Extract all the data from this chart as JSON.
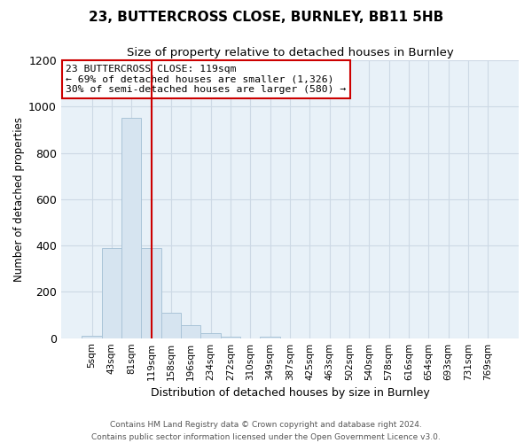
{
  "title": "23, BUTTERCROSS CLOSE, BURNLEY, BB11 5HB",
  "subtitle": "Size of property relative to detached houses in Burnley",
  "xlabel": "Distribution of detached houses by size in Burnley",
  "ylabel": "Number of detached properties",
  "bar_labels": [
    "5sqm",
    "43sqm",
    "81sqm",
    "119sqm",
    "158sqm",
    "196sqm",
    "234sqm",
    "272sqm",
    "310sqm",
    "349sqm",
    "387sqm",
    "425sqm",
    "463sqm",
    "502sqm",
    "540sqm",
    "578sqm",
    "616sqm",
    "654sqm",
    "693sqm",
    "731sqm",
    "769sqm"
  ],
  "bar_values": [
    10,
    390,
    950,
    390,
    110,
    55,
    22,
    5,
    0,
    5,
    0,
    0,
    0,
    0,
    0,
    0,
    0,
    0,
    0,
    0,
    0
  ],
  "bar_color": "#d6e4f0",
  "bar_edgecolor": "#aac4d8",
  "vline_x": 3,
  "vline_color": "#cc0000",
  "ylim": [
    0,
    1200
  ],
  "yticks": [
    0,
    200,
    400,
    600,
    800,
    1000,
    1200
  ],
  "annotation_title": "23 BUTTERCROSS CLOSE: 119sqm",
  "annotation_line1": "← 69% of detached houses are smaller (1,326)",
  "annotation_line2": "30% of semi-detached houses are larger (580) →",
  "annotation_box_color": "#ffffff",
  "annotation_box_edgecolor": "#cc0000",
  "footer1": "Contains HM Land Registry data © Crown copyright and database right 2024.",
  "footer2": "Contains public sector information licensed under the Open Government Licence v3.0.",
  "grid_color": "#cdd9e5",
  "bg_color": "#e8f1f8"
}
